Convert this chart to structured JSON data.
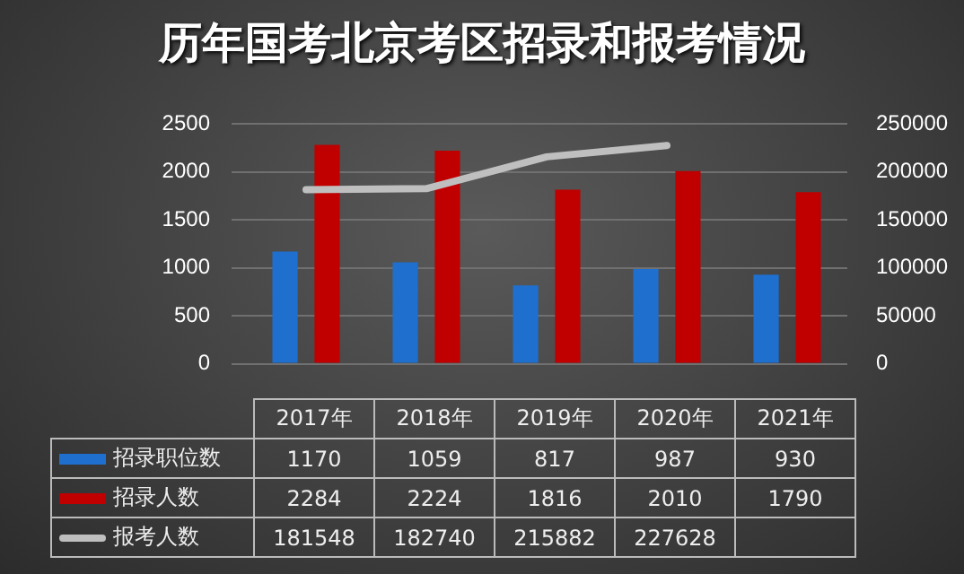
{
  "chart_data": {
    "type": "bar",
    "title": "历年国考北京考区招录和报考情况",
    "categories": [
      "2017年",
      "2018年",
      "2019年",
      "2020年",
      "2021年"
    ],
    "series": [
      {
        "name": "招录职位数",
        "color": "#1f6fcf",
        "values": [
          1170,
          1059,
          817,
          987,
          930
        ]
      },
      {
        "name": "招录人数",
        "color": "#c00000",
        "values": [
          2284,
          2224,
          1816,
          2010,
          1790
        ]
      },
      {
        "name": "报考人数",
        "type": "line",
        "axis": "y2",
        "color": "#bfbfbf",
        "values": [
          181548,
          182740,
          215882,
          227628,
          null
        ]
      }
    ],
    "ylim": [
      0,
      2500
    ],
    "yticks": [
      0,
      500,
      1000,
      1500,
      2000,
      2500
    ],
    "y2lim": [
      0,
      250000
    ],
    "y2ticks": [
      0,
      50000,
      100000,
      150000,
      200000,
      250000
    ],
    "grid": "y",
    "legend": "bottom",
    "data_labels": true
  }
}
